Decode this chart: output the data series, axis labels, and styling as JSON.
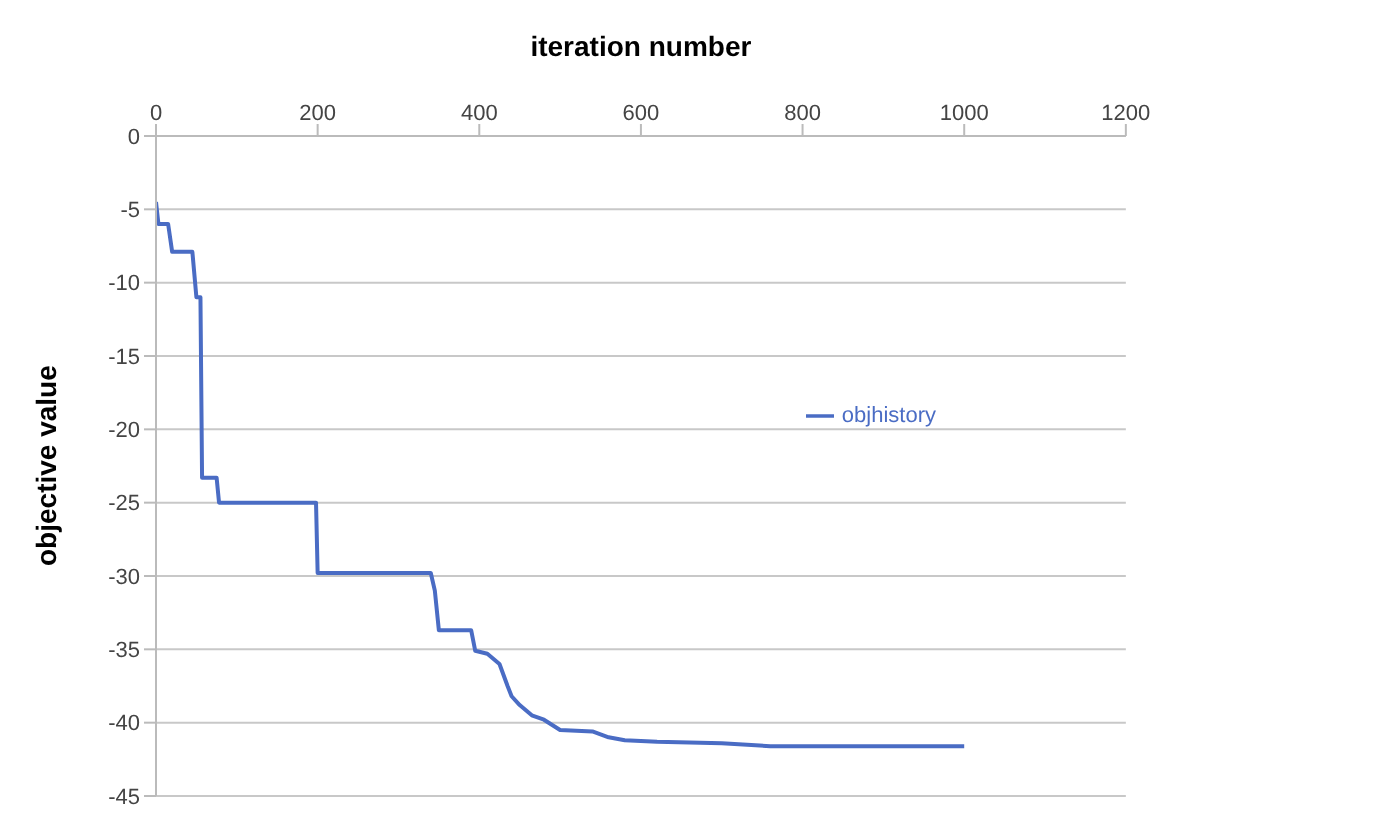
{
  "chart_data": {
    "type": "line",
    "xlabel": "iteration number",
    "ylabel": "objective value",
    "x": [
      0,
      3,
      15,
      20,
      45,
      50,
      55,
      57,
      75,
      78,
      198,
      200,
      340,
      345,
      350,
      390,
      395,
      410,
      425,
      435,
      440,
      450,
      465,
      480,
      500,
      540,
      560,
      580,
      620,
      700,
      760,
      1000
    ],
    "series": [
      {
        "name": "objhistory",
        "color": "#4a6cc4",
        "values": [
          -4.5,
          -6,
          -6,
          -7.9,
          -7.9,
          -11,
          -11,
          -23.3,
          -23.3,
          -25,
          -25,
          -29.8,
          -29.8,
          -31,
          -33.7,
          -33.7,
          -35.1,
          -35.3,
          -36,
          -37.5,
          -38.2,
          -38.8,
          -39.5,
          -39.8,
          -40.5,
          -40.6,
          -41,
          -41.2,
          -41.3,
          -41.4,
          -41.6,
          -41.6
        ]
      }
    ],
    "xlim": [
      0,
      1200
    ],
    "xticks": [
      0,
      200,
      400,
      600,
      800,
      1000,
      1200
    ],
    "ylim": [
      -45,
      0
    ],
    "yticks": [
      0,
      -5,
      -10,
      -15,
      -20,
      -25,
      -30,
      -35,
      -40,
      -45
    ],
    "grid": "y",
    "legend": "right",
    "marker": "none",
    "line_style": "solid"
  }
}
